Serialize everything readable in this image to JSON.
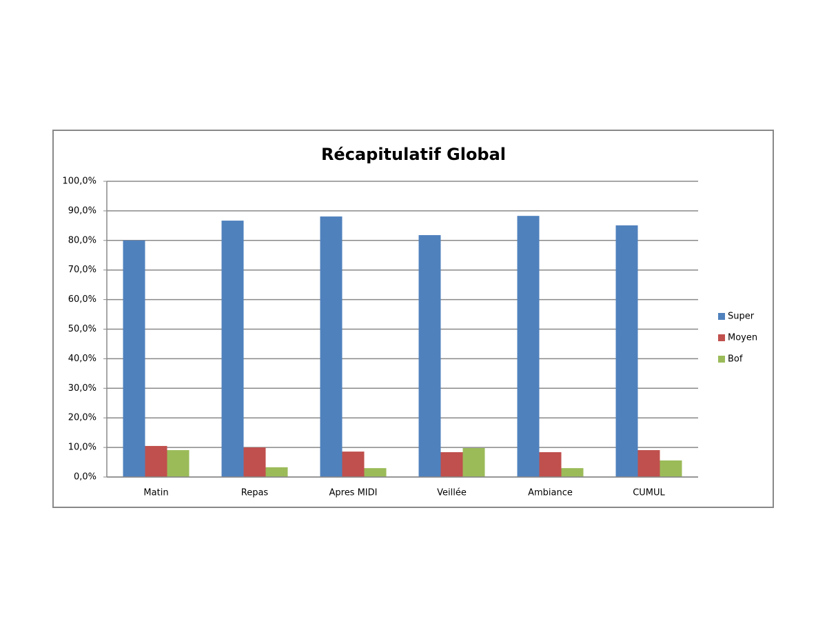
{
  "chart_data": {
    "type": "bar",
    "title": "Récapitulatif Global",
    "categories": [
      "Matin",
      "Repas",
      "Apres MIDI",
      "Veillée",
      "Ambiance",
      "CUMUL"
    ],
    "series": [
      {
        "name": "Super",
        "color": "#4f81bd",
        "values": [
          80.0,
          86.7,
          88.1,
          81.8,
          88.3,
          85.1
        ]
      },
      {
        "name": "Moyen",
        "color": "#c0504d",
        "values": [
          10.5,
          10.0,
          8.6,
          8.4,
          8.4,
          9.1
        ]
      },
      {
        "name": "Bof",
        "color": "#9bbb59",
        "values": [
          9.1,
          3.3,
          3.0,
          9.8,
          3.0,
          5.6
        ]
      }
    ],
    "ylim": [
      0,
      100
    ],
    "yticks": [
      {
        "value": 0,
        "label": "0,0%"
      },
      {
        "value": 10,
        "label": "10,0%"
      },
      {
        "value": 20,
        "label": "20,0%"
      },
      {
        "value": 30,
        "label": "30,0%"
      },
      {
        "value": 40,
        "label": "40,0%"
      },
      {
        "value": 50,
        "label": "50,0%"
      },
      {
        "value": 60,
        "label": "60,0%"
      },
      {
        "value": 70,
        "label": "70,0%"
      },
      {
        "value": 80,
        "label": "80,0%"
      },
      {
        "value": 90,
        "label": "90,0%"
      },
      {
        "value": 100,
        "label": "100,0%"
      }
    ],
    "grid": true,
    "legend": "right"
  }
}
